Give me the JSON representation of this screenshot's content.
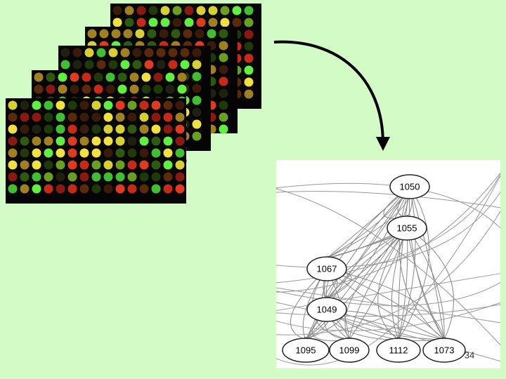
{
  "network": {
    "nodes": [
      {
        "label": "1050"
      },
      {
        "label": "1055"
      },
      {
        "label": "1067"
      },
      {
        "label": "1049"
      },
      {
        "label": "1095"
      },
      {
        "label": "1099"
      },
      {
        "label": "1112"
      },
      {
        "label": "1073"
      }
    ]
  },
  "page_number": "34"
}
